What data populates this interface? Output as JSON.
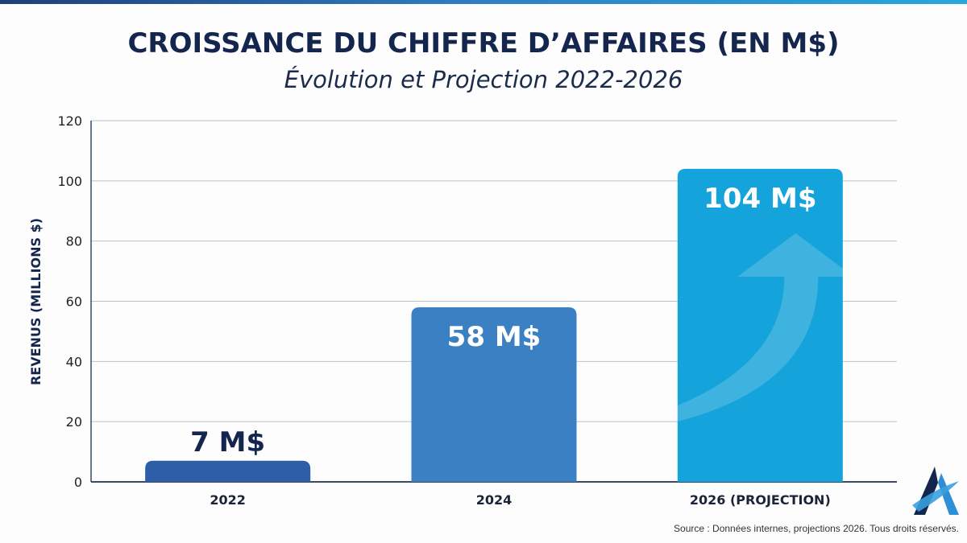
{
  "chart_data": {
    "type": "bar",
    "title": "CROISSANCE DU CHIFFRE D’AFFAIRES (EN M$)",
    "subtitle": "Évolution et Projection 2022-2026",
    "categories": [
      "2022",
      "2024",
      "2026 (PROJECTION)"
    ],
    "values": [
      7,
      58,
      104
    ],
    "data_labels": [
      "7 M$",
      "58 M$",
      "104 M$"
    ],
    "bar_colors": [
      "#2e5ea8",
      "#3b80c2",
      "#14a3da"
    ],
    "xlabel": "",
    "ylabel": "REVENUS (MILLIONS $)",
    "ylim": [
      0,
      120
    ],
    "yticks": [
      0,
      20,
      40,
      60,
      80,
      100,
      120
    ],
    "grid": true,
    "annotation": "upward-arrow on projection bar"
  },
  "footer": {
    "source": "Source : Données internes, projections 2026. Tous droits réservés."
  },
  "logo": {
    "name": "A-logo",
    "colors": [
      "#14264d",
      "#2f8fd6"
    ]
  }
}
